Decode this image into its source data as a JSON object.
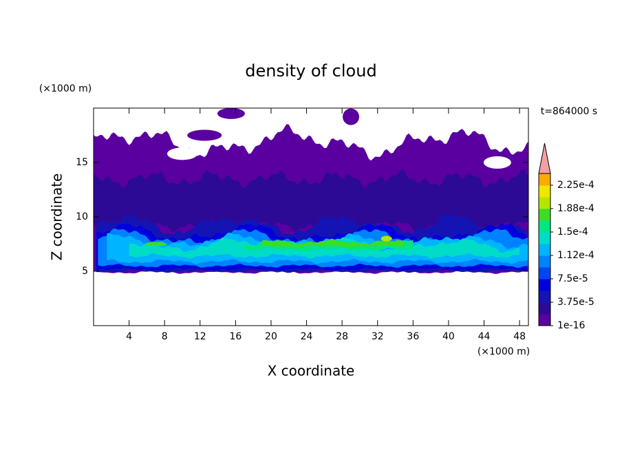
{
  "chart_data": {
    "type": "contour",
    "title": "density of cloud",
    "xlabel": "X coordinate",
    "ylabel": "Z coordinate",
    "xunit": "(×1000 m)",
    "yunit": "(×1000 m)",
    "annotation": "t=864000 s",
    "xlim": [
      0,
      49
    ],
    "xticks": [
      4,
      8,
      12,
      16,
      20,
      24,
      28,
      32,
      36,
      40,
      44,
      48
    ],
    "ylim": [
      0,
      20
    ],
    "yticks": [
      5,
      10,
      15
    ],
    "colorbar": {
      "clim": [
        0,
        0.00024375
      ],
      "ticks": [
        {
          "value": 1e-16,
          "label": "1e-16"
        },
        {
          "value": 3.75e-05,
          "label": "3.75e-5"
        },
        {
          "value": 7.5e-05,
          "label": "7.5e-5"
        },
        {
          "value": 0.0001125,
          "label": "1.12e-4"
        },
        {
          "value": 0.00015,
          "label": "1.5e-4"
        },
        {
          "value": 0.0001875,
          "label": "1.88e-4"
        },
        {
          "value": 0.000225,
          "label": "2.25e-4"
        }
      ],
      "colors": [
        "#5a00a0",
        "#2c0a96",
        "#1414b4",
        "#0000dc",
        "#0046f0",
        "#0082ff",
        "#00b4ff",
        "#00dcc8",
        "#00e682",
        "#3cdc28",
        "#b4e600",
        "#f0e600",
        "#ffaa00"
      ],
      "extend_color": "#f4a0a0"
    }
  }
}
